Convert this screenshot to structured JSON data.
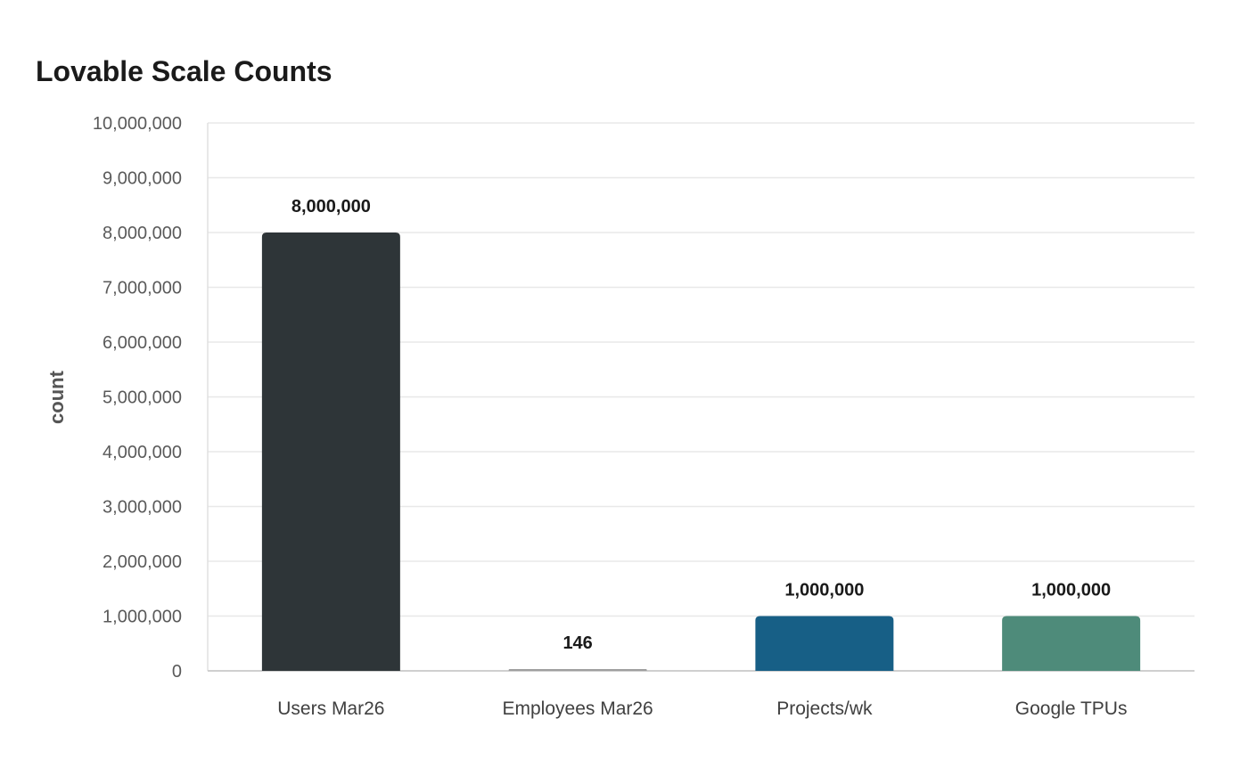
{
  "chart_data": {
    "type": "bar",
    "title": "Lovable Scale Counts",
    "xlabel": "",
    "ylabel": "count",
    "categories": [
      "Users Mar26",
      "Employees Mar26",
      "Projects/wk",
      "Google TPUs"
    ],
    "values": [
      8000000,
      146,
      1000000,
      1000000
    ],
    "value_labels": [
      "8,000,000",
      "146",
      "1,000,000",
      "1,000,000"
    ],
    "colors": [
      "#2e3538",
      "#9e9e9e",
      "#175f86",
      "#4e8b7a"
    ],
    "ylim": [
      0,
      10000000
    ],
    "yticks": [
      0,
      1000000,
      2000000,
      3000000,
      4000000,
      5000000,
      6000000,
      7000000,
      8000000,
      9000000,
      10000000
    ],
    "ytick_labels": [
      "0",
      "1,000,000",
      "2,000,000",
      "3,000,000",
      "4,000,000",
      "5,000,000",
      "6,000,000",
      "7,000,000",
      "8,000,000",
      "9,000,000",
      "10,000,000"
    ],
    "grid": true,
    "legend": "none"
  }
}
